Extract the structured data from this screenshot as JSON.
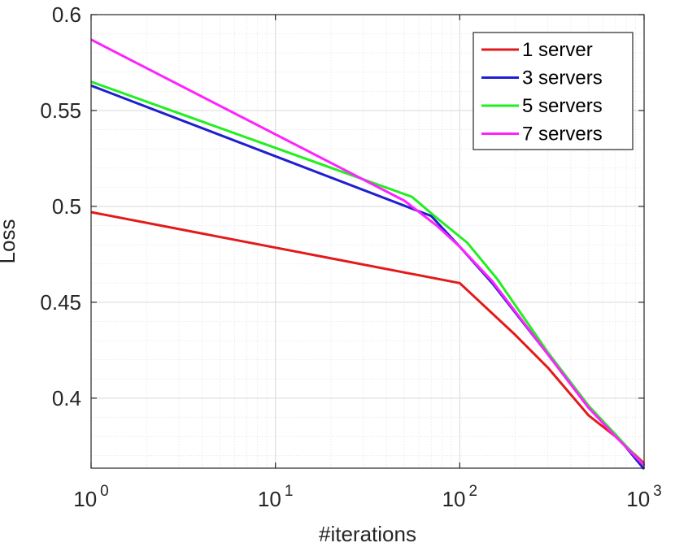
{
  "chart_data": {
    "type": "line",
    "xscale": "log",
    "xlabel": "#iterations",
    "ylabel": "Loss",
    "xlim": [
      1,
      1000
    ],
    "ylim": [
      0.3635,
      0.6
    ],
    "x_ticks": [
      {
        "value": 1,
        "base": "10",
        "exp": "0"
      },
      {
        "value": 10,
        "base": "10",
        "exp": "1"
      },
      {
        "value": 100,
        "base": "10",
        "exp": "2"
      },
      {
        "value": 1000,
        "base": "10",
        "exp": "3"
      }
    ],
    "y_ticks": [
      {
        "value": 0.4,
        "label": "0.4"
      },
      {
        "value": 0.45,
        "label": "0.45"
      },
      {
        "value": 0.5,
        "label": "0.5"
      },
      {
        "value": 0.55,
        "label": "0.55"
      },
      {
        "value": 0.6,
        "label": "0.6"
      }
    ],
    "grid": true,
    "minor_grid": true,
    "legend_position": "top-right",
    "series": [
      {
        "name": "1 server",
        "color": "#e31a1c",
        "points": [
          [
            1,
            0.497
          ],
          [
            100,
            0.46
          ],
          [
            200,
            0.433
          ],
          [
            300,
            0.416
          ],
          [
            500,
            0.391
          ],
          [
            700,
            0.38
          ],
          [
            1000,
            0.366
          ]
        ]
      },
      {
        "name": "3 servers",
        "color": "#1f1fd1",
        "points": [
          [
            1,
            0.563
          ],
          [
            70,
            0.495
          ],
          [
            100,
            0.479
          ],
          [
            150,
            0.46
          ],
          [
            300,
            0.423
          ],
          [
            500,
            0.395
          ],
          [
            700,
            0.381
          ],
          [
            1000,
            0.363
          ]
        ]
      },
      {
        "name": "5 servers",
        "color": "#22ee22",
        "points": [
          [
            1,
            0.565
          ],
          [
            55,
            0.505
          ],
          [
            75,
            0.494
          ],
          [
            110,
            0.481
          ],
          [
            160,
            0.462
          ],
          [
            300,
            0.424
          ],
          [
            500,
            0.396
          ],
          [
            700,
            0.381
          ],
          [
            1000,
            0.365
          ]
        ]
      },
      {
        "name": "7 servers",
        "color": "#ff22ff",
        "points": [
          [
            1,
            0.587
          ],
          [
            50,
            0.503
          ],
          [
            75,
            0.49
          ],
          [
            100,
            0.479
          ],
          [
            150,
            0.461
          ],
          [
            300,
            0.423
          ],
          [
            500,
            0.395
          ],
          [
            700,
            0.38
          ],
          [
            1000,
            0.365
          ]
        ]
      }
    ]
  }
}
